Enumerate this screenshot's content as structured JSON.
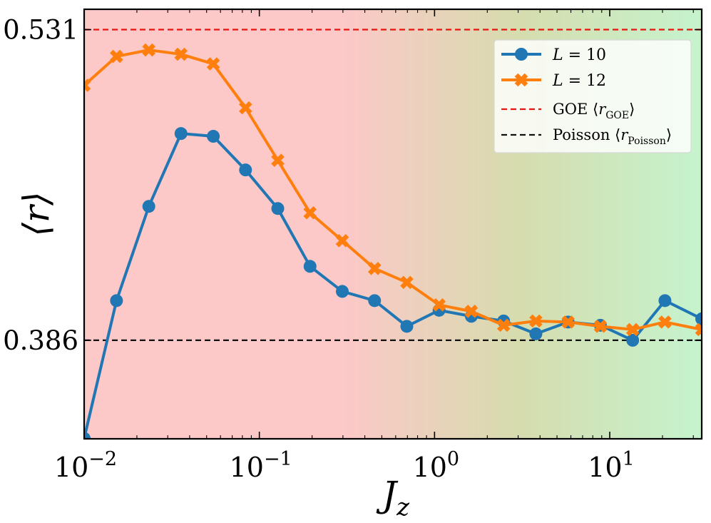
{
  "chart_data": {
    "type": "line",
    "xscale": "log",
    "xlim": [
      0.01,
      33.5
    ],
    "ylim": [
      0.34,
      0.5405
    ],
    "xlabel": "J_z",
    "ylabel": "⟨r⟩",
    "x_ticks": [
      {
        "value": 0.01,
        "base": "10",
        "exp": "−2"
      },
      {
        "value": 0.1,
        "base": "10",
        "exp": "−1"
      },
      {
        "value": 1,
        "base": "10",
        "exp": "0"
      },
      {
        "value": 10,
        "base": "10",
        "exp": "1"
      }
    ],
    "y_ticks": [
      {
        "value": 0.386,
        "label": "0.386"
      },
      {
        "value": 0.531,
        "label": "0.531"
      }
    ],
    "reference_lines": [
      {
        "name": "GOE",
        "sub": "GOE",
        "value": 0.531,
        "color": "#e8150f",
        "dash": "dashed"
      },
      {
        "name": "Poisson",
        "sub": "Poisson",
        "value": 0.386,
        "color": "#111111",
        "dash": "dashed"
      }
    ],
    "background_gradient": {
      "left": "#fcc8c8",
      "right": "#c6f2cc",
      "transition_start": 0.3,
      "transition_end": 30
    },
    "legend": {
      "position": "top-right"
    },
    "series": [
      {
        "name": "L = 10",
        "var": "L",
        "val": "10",
        "color": "#2077b4",
        "marker": "circle",
        "points": [
          [
            0.01,
            0.3402
          ],
          [
            0.0153,
            0.4045
          ],
          [
            0.0234,
            0.4485
          ],
          [
            0.0357,
            0.4825
          ],
          [
            0.0546,
            0.4812
          ],
          [
            0.0834,
            0.4655
          ],
          [
            0.1274,
            0.4475
          ],
          [
            0.1947,
            0.4205
          ],
          [
            0.2975,
            0.4088
          ],
          [
            0.4547,
            0.4045
          ],
          [
            0.6947,
            0.3925
          ],
          [
            1.0616,
            0.4
          ],
          [
            1.622,
            0.3972
          ],
          [
            2.479,
            0.395
          ],
          [
            3.788,
            0.389
          ],
          [
            5.788,
            0.3945
          ],
          [
            8.845,
            0.393
          ],
          [
            13.52,
            0.386
          ],
          [
            20.66,
            0.4045
          ],
          [
            33.5,
            0.396
          ]
        ]
      },
      {
        "name": "L = 12",
        "var": "L",
        "val": "12",
        "color": "#ff7f0e",
        "marker": "x",
        "points": [
          [
            0.01,
            0.505
          ],
          [
            0.0153,
            0.5185
          ],
          [
            0.0234,
            0.5215
          ],
          [
            0.0357,
            0.5195
          ],
          [
            0.0546,
            0.515
          ],
          [
            0.0834,
            0.4945
          ],
          [
            0.1274,
            0.47
          ],
          [
            0.1947,
            0.4455
          ],
          [
            0.2975,
            0.4325
          ],
          [
            0.4547,
            0.4195
          ],
          [
            0.6947,
            0.413
          ],
          [
            1.0616,
            0.4025
          ],
          [
            1.622,
            0.3995
          ],
          [
            2.479,
            0.393
          ],
          [
            3.788,
            0.395
          ],
          [
            5.788,
            0.3945
          ],
          [
            8.845,
            0.3925
          ],
          [
            13.52,
            0.391
          ],
          [
            20.66,
            0.3945
          ],
          [
            33.5,
            0.391
          ]
        ]
      }
    ]
  }
}
